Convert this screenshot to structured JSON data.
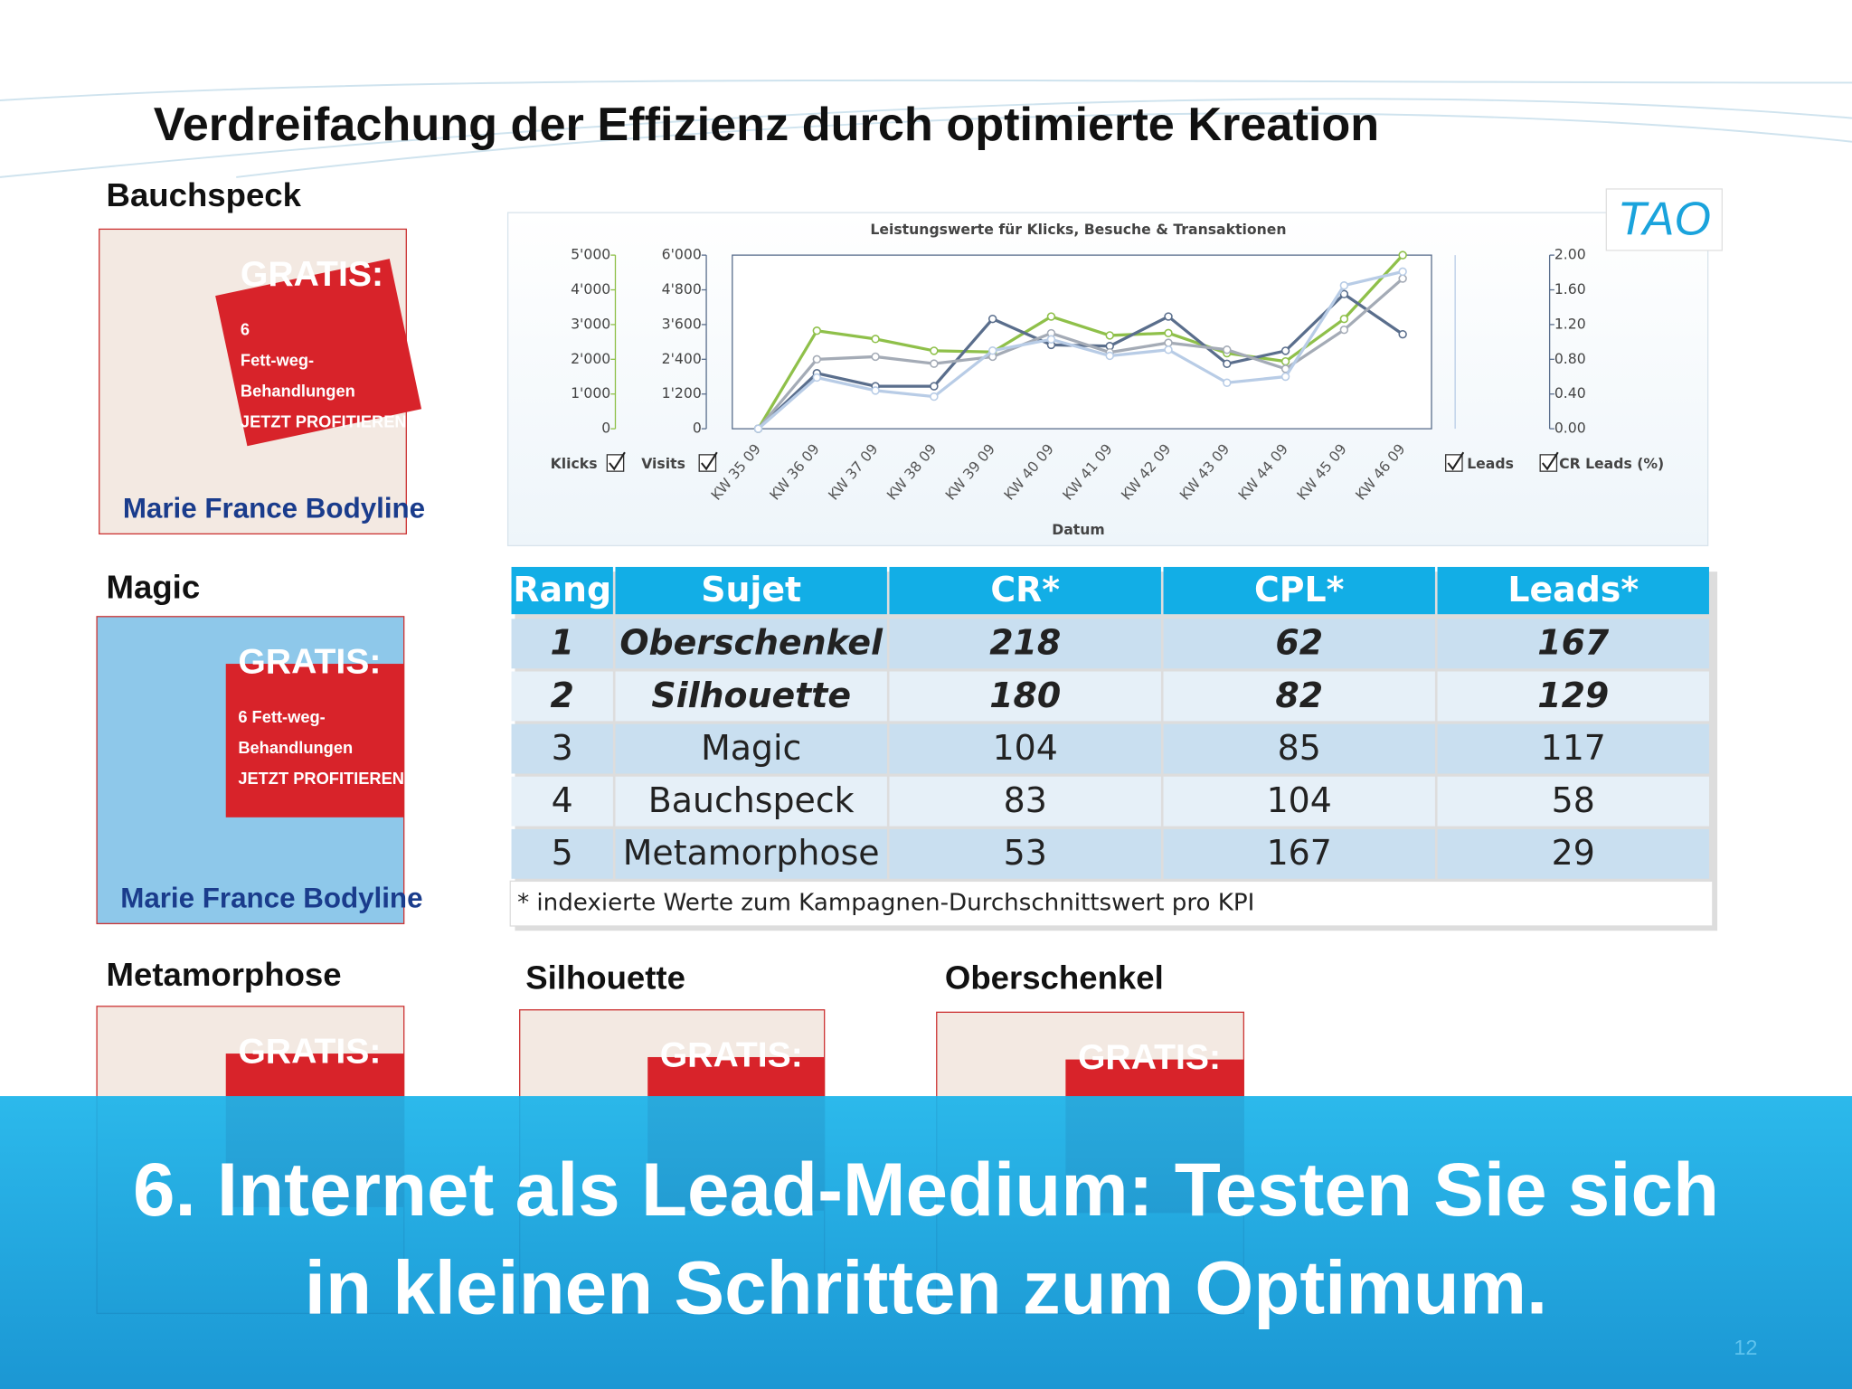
{
  "header": {
    "title": "Verdreifachung der Effizienz durch optimierte Kreation"
  },
  "ads": [
    {
      "label": "Bauchspeck",
      "texts": [
        "GRATIS:",
        "6",
        "Fett-weg-",
        "Behandlungen",
        "JETZT PROFITIEREN",
        "Marie France Bodyline"
      ]
    },
    {
      "label": "Magic",
      "texts": [
        "GRATIS:",
        "6 Fett-weg-",
        "Behandlungen",
        "JETZT PROFITIEREN",
        "Marie France Bodyline"
      ]
    },
    {
      "label": "Metamorphose",
      "texts": [
        "GRATIS:"
      ]
    },
    {
      "label": "Silhouette",
      "texts": [
        "GRATIS:"
      ]
    },
    {
      "label": "Oberschenkel",
      "texts": [
        "GRATIS:"
      ]
    }
  ],
  "logo": "TAO",
  "chart_data": {
    "type": "line",
    "title": "Leistungswerte für Klicks, Besuche & Transaktionen",
    "x_label": "Datum",
    "categories": [
      "KW 35 09",
      "KW 36 09",
      "KW 37 09",
      "KW 38 09",
      "KW 39 09",
      "KW 40 09",
      "KW 41 09",
      "KW 42 09",
      "KW 43 09",
      "KW 44 09",
      "KW 45 09",
      "KW 46 09"
    ],
    "ylim": [
      0,
      5000
    ],
    "yticks": [
      0,
      {
        "value": 1000,
        "label": "1'000"
      },
      {
        "value": 2000,
        "label": "2'000"
      },
      {
        "value": 3000,
        "label": "3'000"
      },
      {
        "value": 4000,
        "label": "4'000"
      },
      {
        "value": 5000,
        "label": "5'000"
      }
    ],
    "y1blim": [
      0,
      6000
    ],
    "y1bticks": [
      0,
      {
        "value": 1200,
        "label": "1'200"
      },
      {
        "value": 2400,
        "label": "2'400"
      },
      {
        "value": 3600,
        "label": "3'600"
      },
      {
        "value": 4800,
        "label": "4'800"
      },
      {
        "value": 6000,
        "label": "6'000"
      }
    ],
    "y2lim": [
      0,
      2
    ],
    "y2ticks": [
      {
        "value": 0,
        "label": "0.00"
      },
      {
        "value": 0.4,
        "label": "0.40"
      },
      {
        "value": 0.8,
        "label": "0.80"
      },
      {
        "value": 1.2,
        "label": "1.20"
      },
      {
        "value": 1.6,
        "label": "1.60"
      },
      {
        "value": 2,
        "label": "2.00"
      }
    ],
    "series": [
      {
        "name": "Klicks",
        "color": "#8fc04a",
        "values": [
          0,
          2823,
          2585,
          2245,
          2211,
          3231,
          2687,
          2755,
          2177,
          1939,
          3163,
          5000
        ]
      },
      {
        "name": "Visits",
        "color": "#5a6e8c",
        "axis": "y1b",
        "values": [
          0,
          1918,
          1469,
          1469,
          3796,
          2898,
          2857,
          3878,
          2245,
          2694,
          4653,
          3265
        ]
      },
      {
        "name": "Leads",
        "color": "#a4abb6",
        "axis": "y2",
        "values": [
          0,
          0.8,
          0.83,
          0.75,
          0.83,
          1.1,
          0.88,
          0.99,
          0.91,
          0.69,
          1.14,
          1.73
        ]
      },
      {
        "name": "CR Leads (%)",
        "color": "#b8cce6",
        "axis": "y2",
        "values": [
          0,
          0.59,
          0.44,
          0.37,
          0.9,
          1.03,
          0.84,
          0.91,
          0.53,
          0.6,
          1.65,
          1.81
        ]
      }
    ]
  },
  "table": {
    "header": [
      "Rang",
      "Sujet",
      "CR*",
      "CPL*",
      "Leads*"
    ],
    "rows": [
      [
        1,
        "Oberschenkel",
        218,
        62,
        167
      ],
      [
        2,
        "Silhouette",
        180,
        82,
        129
      ],
      [
        3,
        "Magic",
        104,
        85,
        117
      ],
      [
        4,
        "Bauchspeck",
        83,
        104,
        58
      ],
      [
        5,
        "Metamorphose",
        53,
        167,
        29
      ]
    ],
    "footnote": "* indexierte Werte zum Kampagnen-Durchschnittswert pro KPI"
  },
  "banner": {
    "lines": [
      "6. Internet als Lead-Medium: Testen Sie sich",
      "in kleinen Schritten zum Optimum."
    ]
  },
  "footer": {
    "page": "12"
  }
}
